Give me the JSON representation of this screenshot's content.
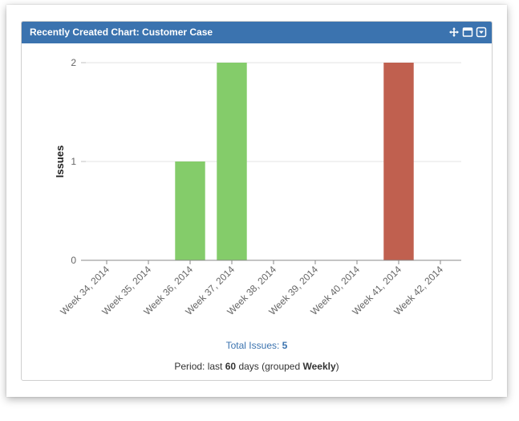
{
  "gadget": {
    "title": "Recently Created Chart: Customer Case",
    "controls": [
      {
        "name": "move-icon"
      },
      {
        "name": "maximize-icon"
      },
      {
        "name": "menu-dropdown-icon"
      }
    ]
  },
  "footer": {
    "total_label": "Total Issues:",
    "total_value": "5",
    "period_prefix": "Period: last",
    "period_days": "60",
    "period_mid": "days (grouped",
    "period_group": "Weekly",
    "period_suffix": ")"
  },
  "chart_data": {
    "type": "bar",
    "ylabel": "Issues",
    "xlabel": "",
    "ylim": [
      0,
      2
    ],
    "yticks": [
      0,
      1,
      2
    ],
    "grid": true,
    "categories": [
      "Week 34, 2014",
      "Week 35, 2014",
      "Week 36, 2014",
      "Week 37, 2014",
      "Week 38, 2014",
      "Week 39, 2014",
      "Week 40, 2014",
      "Week 41, 2014",
      "Week 42, 2014"
    ],
    "values": [
      0,
      0,
      1,
      2,
      0,
      0,
      0,
      2,
      0
    ],
    "colors": [
      "#84cc6a",
      "#84cc6a",
      "#84cc6a",
      "#84cc6a",
      "#84cc6a",
      "#84cc6a",
      "#84cc6a",
      "#c0604f",
      "#84cc6a"
    ]
  }
}
